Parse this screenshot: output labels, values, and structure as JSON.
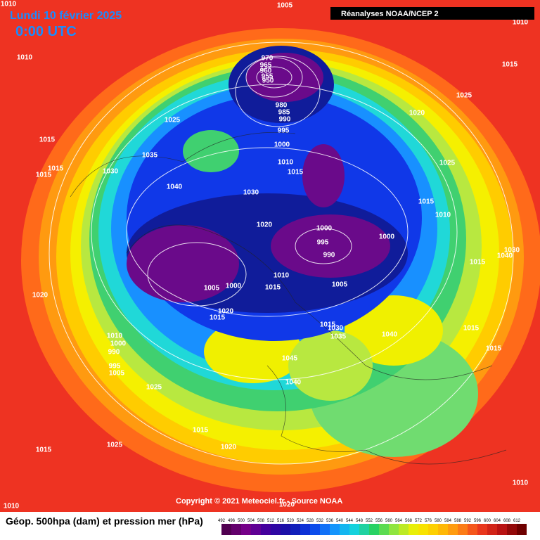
{
  "header": {
    "date": "Lundi 10 février 2025",
    "time": "0:00 UTC",
    "source": "Réanalyses NOAA/NCEP 2"
  },
  "isobar_labels": [
    1005,
    1010,
    1010,
    1010,
    1015,
    1025,
    970,
    965,
    960,
    955,
    950,
    980,
    985,
    990,
    995,
    1000,
    1010,
    1015,
    1020,
    1025,
    1015,
    1035,
    1015,
    1015,
    1030,
    1040,
    1030,
    1025,
    1015,
    1010,
    1020,
    1000,
    995,
    990,
    1000,
    1030,
    1040,
    1015,
    1010,
    1015,
    1005,
    1005,
    1000,
    1020,
    1015,
    1020,
    1015,
    1030,
    1035,
    1040,
    1015,
    1010,
    1015,
    1000,
    990,
    995,
    1005,
    1045,
    1040,
    1025,
    1015,
    1015,
    1025,
    1020,
    1010,
    1010,
    1020
  ],
  "footer": {
    "copyright": "Copyright © 2021 Meteociel.fr - Source NOAA",
    "legend_title": "Géop. 500hpa (dam) et pression mer (hPa)"
  },
  "colorbar": {
    "ticks": [
      492,
      496,
      500,
      504,
      508,
      512,
      516,
      520,
      524,
      528,
      532,
      536,
      540,
      544,
      548,
      552,
      556,
      560,
      564,
      568,
      572,
      576,
      580,
      584,
      588,
      592,
      596,
      600,
      604,
      608,
      612
    ]
  }
}
